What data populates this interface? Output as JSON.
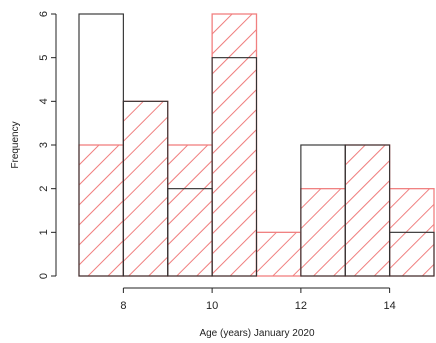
{
  "chart_data": {
    "type": "bar",
    "title": "",
    "xlabel": "Age (years) January 2020",
    "ylabel": "Frequency",
    "xlim": [
      7,
      15
    ],
    "ylim": [
      0,
      6
    ],
    "x_ticks": [
      8,
      10,
      12,
      14
    ],
    "y_ticks": [
      0,
      1,
      2,
      3,
      4,
      5,
      6
    ],
    "bin_edges": [
      7,
      8,
      9,
      10,
      11,
      12,
      13,
      14,
      15
    ],
    "grid": false,
    "series": [
      {
        "values": [
          6,
          4,
          2,
          5,
          0,
          3,
          3,
          1
        ],
        "color": "#333333",
        "fill": "none",
        "style": "outline"
      },
      {
        "values": [
          3,
          4,
          3,
          6,
          1,
          2,
          3,
          2
        ],
        "color": "#f08080",
        "fill": "hatched",
        "style": "diagonal-hatch"
      }
    ]
  }
}
